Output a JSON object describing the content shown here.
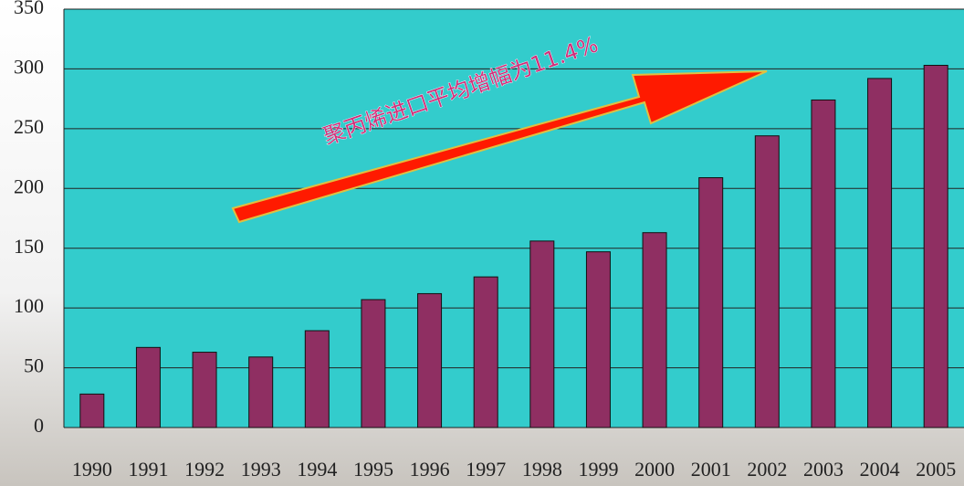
{
  "chart_data": {
    "type": "bar",
    "annotation": "聚丙烯进口平均增幅为11.4%",
    "categories": [
      "1990",
      "1991",
      "1992",
      "1993",
      "1994",
      "1995",
      "1996",
      "1997",
      "1998",
      "1999",
      "2000",
      "2001",
      "2002",
      "2003",
      "2004",
      "2005"
    ],
    "values": [
      28,
      67,
      63,
      59,
      81,
      107,
      112,
      126,
      156,
      147,
      163,
      209,
      244,
      274,
      292,
      303
    ],
    "color": "#8f2f62",
    "ylim": [
      0,
      350
    ],
    "yticks": [
      0,
      50,
      100,
      150,
      200,
      250,
      300,
      350
    ],
    "grid": true
  }
}
